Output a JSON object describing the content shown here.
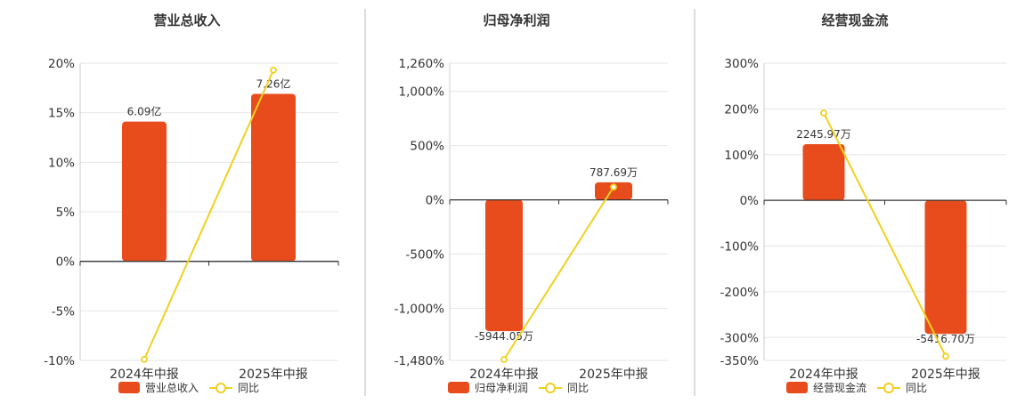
{
  "colors": {
    "bar": "#e84c1d",
    "line": "#f2d01f",
    "axis": "#333333",
    "grid": "#e6e6e6",
    "divider": "#bbbbbb",
    "text": "#333333"
  },
  "legend": {
    "bar_label_suffix": "",
    "line_label": "同比"
  },
  "chart_data": [
    {
      "type": "bar",
      "title": "营业总收入",
      "categories": [
        "2024年中报",
        "2025年中报"
      ],
      "yticks": [
        "20%",
        "15%",
        "10%",
        "5%",
        "0%",
        "-5%",
        "-10%"
      ],
      "ylim": [
        -10,
        20
      ],
      "series": [
        {
          "name": "营业总收入",
          "kind": "bar",
          "values": [
            14.1,
            16.9
          ],
          "labels": [
            "6.09亿",
            "7.26亿"
          ]
        },
        {
          "name": "同比",
          "kind": "line",
          "values": [
            -9.9,
            19.3
          ]
        }
      ]
    },
    {
      "type": "bar",
      "title": "归母净利润",
      "categories": [
        "2024年中报",
        "2025年中报"
      ],
      "yticks": [
        "1,260%",
        "1,000%",
        "500%",
        "0%",
        "-500%",
        "-1,000%",
        "-1,480%"
      ],
      "ylim": [
        -1480,
        1260
      ],
      "series": [
        {
          "name": "归母净利润",
          "kind": "bar",
          "values": [
            -1210,
            162
          ],
          "labels": [
            "-5944.05万",
            "787.69万"
          ]
        },
        {
          "name": "同比",
          "kind": "line",
          "values": [
            -1472,
            118
          ]
        }
      ]
    },
    {
      "type": "bar",
      "title": "经营现金流",
      "categories": [
        "2024年中报",
        "2025年中报"
      ],
      "yticks": [
        "300%",
        "200%",
        "100%",
        "0%",
        "-100%",
        "-200%",
        "-300%",
        "-350%"
      ],
      "ylim": [
        -350,
        300
      ],
      "series": [
        {
          "name": "经营现金流",
          "kind": "bar",
          "values": [
            123,
            -292
          ],
          "labels": [
            "2245.97万",
            "-5416.70万"
          ]
        },
        {
          "name": "同比",
          "kind": "line",
          "values": [
            191,
            -341
          ]
        }
      ]
    }
  ]
}
